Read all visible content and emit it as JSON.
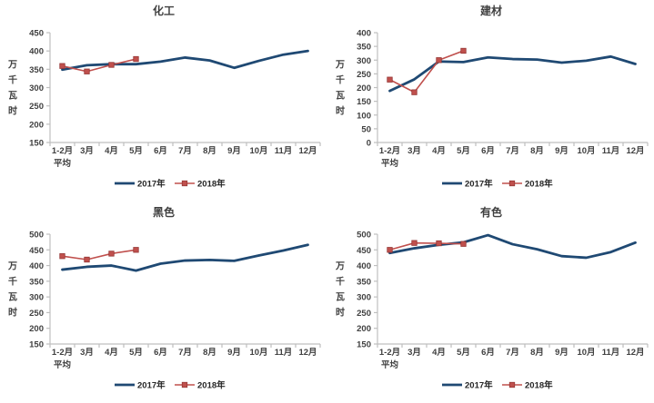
{
  "page": {
    "background": "#ffffff"
  },
  "colors": {
    "axis": "#BFBFBF",
    "tick_label": "#404040",
    "title": "#404040",
    "series_2017": "#1F4973",
    "series_2018": "#C0504D",
    "marker_border": "#953735"
  },
  "legend": {
    "items": [
      {
        "label": "2017年"
      },
      {
        "label": "2018年"
      }
    ]
  },
  "chart_data": [
    {
      "type": "line",
      "title": "化工",
      "ylabel": "万千瓦时",
      "categories": [
        "1-2月",
        "3月",
        "4月",
        "5月",
        "6月",
        "7月",
        "8月",
        "9月",
        "10月",
        "11月",
        "12月"
      ],
      "first_category_line2": "平均",
      "ylim": [
        150,
        450
      ],
      "ytick_step": 50,
      "grid": false,
      "legend_position": "bottom",
      "series": [
        {
          "name": "2017年",
          "color": "#1F4973",
          "marker": false,
          "values": [
            349,
            361,
            364,
            364,
            371,
            382,
            374,
            354,
            373,
            390,
            400
          ]
        },
        {
          "name": "2018年",
          "color": "#C0504D",
          "marker": true,
          "values": [
            359,
            344,
            362,
            378
          ]
        }
      ]
    },
    {
      "type": "line",
      "title": "建材",
      "ylabel": "万千瓦时",
      "categories": [
        "1-2月",
        "3月",
        "4月",
        "5月",
        "6月",
        "7月",
        "8月",
        "9月",
        "10月",
        "11月",
        "12月"
      ],
      "first_category_line2": "平均",
      "ylim": [
        0,
        400
      ],
      "ytick_step": 50,
      "grid": false,
      "legend_position": "bottom",
      "series": [
        {
          "name": "2017年",
          "color": "#1F4973",
          "marker": false,
          "values": [
            188,
            230,
            295,
            293,
            310,
            304,
            302,
            291,
            298,
            313,
            286
          ]
        },
        {
          "name": "2018年",
          "color": "#C0504D",
          "marker": true,
          "values": [
            229,
            183,
            300,
            334
          ]
        }
      ]
    },
    {
      "type": "line",
      "title": "黑色",
      "ylabel": "万千瓦时",
      "categories": [
        "1-2月",
        "3月",
        "4月",
        "5月",
        "6月",
        "7月",
        "8月",
        "9月",
        "10月",
        "11月",
        "12月"
      ],
      "first_category_line2": "平均",
      "ylim": [
        150,
        500
      ],
      "ytick_step": 50,
      "grid": false,
      "legend_position": "bottom",
      "series": [
        {
          "name": "2017年",
          "color": "#1F4973",
          "marker": false,
          "values": [
            387,
            396,
            400,
            384,
            406,
            416,
            418,
            415,
            432,
            448,
            466
          ]
        },
        {
          "name": "2018年",
          "color": "#C0504D",
          "marker": true,
          "values": [
            430,
            419,
            438,
            450
          ]
        }
      ]
    },
    {
      "type": "line",
      "title": "有色",
      "ylabel": "万千瓦时",
      "categories": [
        "1-2月",
        "3月",
        "4月",
        "5月",
        "6月",
        "7月",
        "8月",
        "9月",
        "10月",
        "11月",
        "12月"
      ],
      "first_category_line2": "平均",
      "ylim": [
        150,
        500
      ],
      "ytick_step": 50,
      "grid": false,
      "legend_position": "bottom",
      "series": [
        {
          "name": "2017年",
          "color": "#1F4973",
          "marker": false,
          "values": [
            440,
            455,
            466,
            474,
            497,
            468,
            452,
            430,
            425,
            443,
            473
          ]
        },
        {
          "name": "2018年",
          "color": "#C0504D",
          "marker": true,
          "values": [
            450,
            472,
            471,
            469
          ]
        }
      ]
    }
  ]
}
